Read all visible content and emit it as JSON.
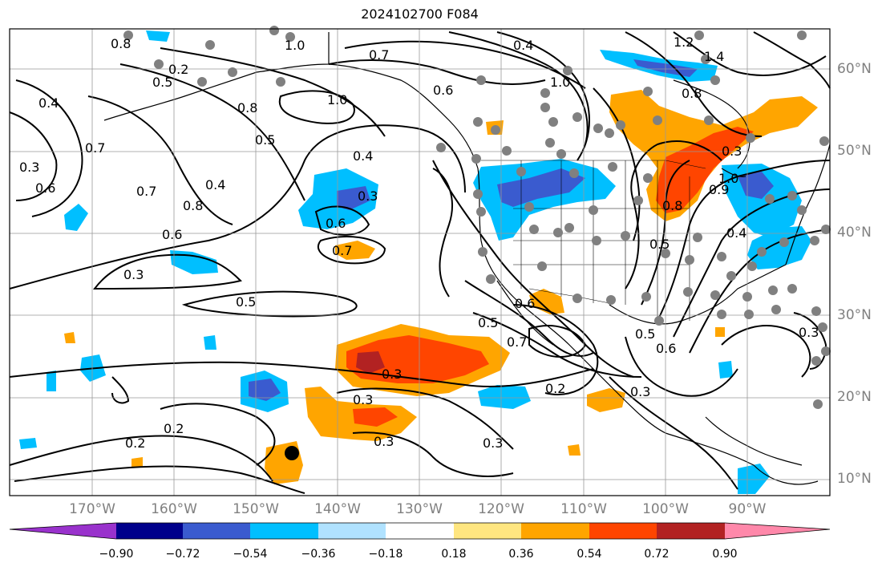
{
  "title": "2024102700 F084",
  "lat_labels": [
    "60°N",
    "50°N",
    "40°N",
    "30°N",
    "20°N",
    "10°N"
  ],
  "lon_labels": [
    "170°W",
    "160°W",
    "150°W",
    "140°W",
    "130°W",
    "120°W",
    "110°W",
    "100°W",
    "90°W"
  ],
  "colorbar": {
    "ticks": [
      "−0.90",
      "−0.72",
      "−0.54",
      "−0.36",
      "−0.18",
      "0.18",
      "0.36",
      "0.54",
      "0.72",
      "0.90"
    ],
    "colors": [
      "#9932cc",
      "#00008b",
      "#3a5bcf",
      "#00bfff",
      "#b0e2ff",
      "#ffffff",
      "#ffe680",
      "#ffa500",
      "#ff4500",
      "#b22222",
      "#ff88aa"
    ]
  },
  "contour_labels": [
    "0.8",
    "1.0",
    "0.7",
    "0.4",
    "1.2",
    "1.4",
    "0.5",
    "0.6",
    "0.4",
    "0.8",
    "1.0",
    "0.5",
    "0.8",
    "0.4",
    "0.7",
    "0.3",
    "0.6",
    "1.0",
    "0.8",
    "0.7",
    "0.6",
    "0.4",
    "0.3",
    "0.6",
    "0.7",
    "0.3",
    "0.5",
    "0.8",
    "0.9",
    "1.0",
    "0.4",
    "0.5",
    "0.6",
    "0.7",
    "0.5",
    "0.3",
    "0.2",
    "0.3",
    "0.2",
    "0.2",
    "0.3",
    "0.3",
    "0.3",
    "0.5",
    "0.6",
    "0.3",
    "0.2",
    "0.3"
  ]
}
